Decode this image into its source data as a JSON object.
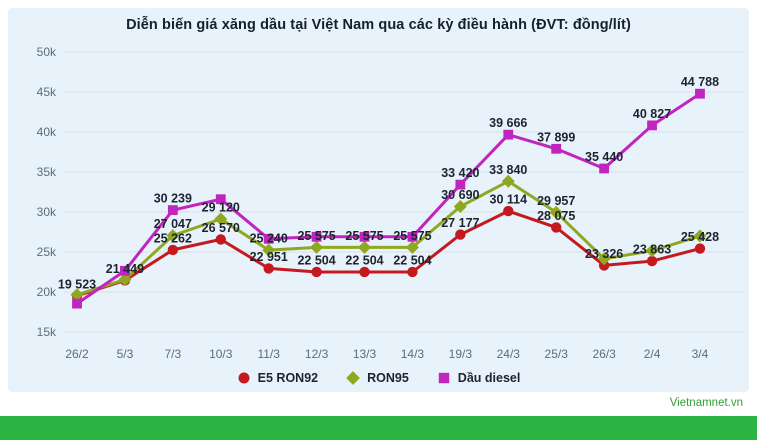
{
  "page": {
    "source_credit": "Vietnamnet.vn",
    "panel_bg": "#e8f2fb",
    "footer_bar_color": "#2db543",
    "grid_color": "#d7e0e9"
  },
  "chart_data": {
    "type": "line",
    "title": "Diễn biến giá xăng dầu tại Việt Nam qua các kỳ điều hành (ĐVT: đồng/lít)",
    "unit": "đồng/lít",
    "categories": [
      "26/2",
      "5/3",
      "7/3",
      "10/3",
      "11/3",
      "12/3",
      "13/3",
      "14/3",
      "19/3",
      "24/3",
      "25/3",
      "26/3",
      "2/4",
      "3/4"
    ],
    "y_ticks": [
      "50k",
      "45k",
      "40k",
      "35k",
      "30k",
      "25k",
      "20k",
      "15k"
    ],
    "ylim": [
      15000,
      50000
    ],
    "grid": "horizontal",
    "legend_position": "bottom",
    "series": [
      {
        "name": "E5 RON92",
        "color": "#c41a1f",
        "marker": "circle",
        "values": [
          19523,
          21449,
          25262,
          26570,
          22951,
          22504,
          22504,
          22504,
          27177,
          30114,
          28075,
          23326,
          23863,
          25428
        ],
        "labels": [
          "19 523",
          "21 449",
          "25 262",
          "26 570",
          "22 951",
          "22 504",
          "22 504",
          "22 504",
          "27 177",
          "30 114",
          "28 075",
          "23 326",
          "23 863",
          "25 428"
        ]
      },
      {
        "name": "RON95",
        "color": "#90a821",
        "marker": "diamond",
        "values": [
          19650,
          21550,
          27047,
          29120,
          25240,
          25575,
          25575,
          25575,
          30690,
          33840,
          29957,
          24150,
          25150,
          27000
        ],
        "labels": [
          "",
          "",
          "27 047",
          "29 120",
          "25 240",
          "25 575",
          "25 575",
          "25 575",
          "30 690",
          "33 840",
          "29 957",
          "",
          "",
          ""
        ]
      },
      {
        "name": "Dầu diesel",
        "color": "#c025bf",
        "marker": "square",
        "values": [
          18550,
          22650,
          30239,
          31600,
          26650,
          26900,
          26900,
          26900,
          33420,
          39666,
          37899,
          35440,
          40827,
          44788
        ],
        "labels": [
          "",
          "",
          "30 239",
          "",
          "",
          "",
          "",
          "",
          "33 420",
          "39 666",
          "37 899",
          "35 440",
          "40 827",
          "44 788"
        ]
      }
    ]
  }
}
